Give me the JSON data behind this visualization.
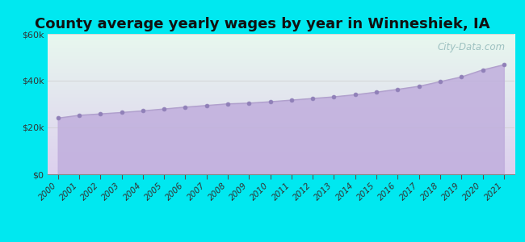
{
  "title": "County average yearly wages by year in Winneshiek, IA",
  "years": [
    2000,
    2001,
    2002,
    2003,
    2004,
    2005,
    2006,
    2007,
    2008,
    2009,
    2010,
    2011,
    2012,
    2013,
    2014,
    2015,
    2016,
    2017,
    2018,
    2019,
    2020,
    2021
  ],
  "wages": [
    24000,
    25200,
    25800,
    26400,
    27100,
    27900,
    28700,
    29400,
    30100,
    30400,
    31000,
    31700,
    32400,
    33100,
    34000,
    35100,
    36300,
    37600,
    39600,
    41600,
    44600,
    46800
  ],
  "ylim": [
    0,
    60000
  ],
  "yticks": [
    0,
    20000,
    40000,
    60000
  ],
  "ytick_labels": [
    "$0",
    "$20k",
    "$40k",
    "$60k"
  ],
  "line_color": "#b0a0cc",
  "fill_color": "#c0aedd",
  "fill_alpha": 0.85,
  "marker_color": "#9080b8",
  "marker_size": 3.5,
  "bg_outer": "#00e8f0",
  "bg_plot_top": "#e8f8ee",
  "bg_plot_bottom": "#ddd0ee",
  "watermark_text": "City-Data.com",
  "watermark_color": "#90b8b8",
  "title_fontsize": 13,
  "tick_fontsize": 7.5,
  "ytick_fontsize": 8
}
